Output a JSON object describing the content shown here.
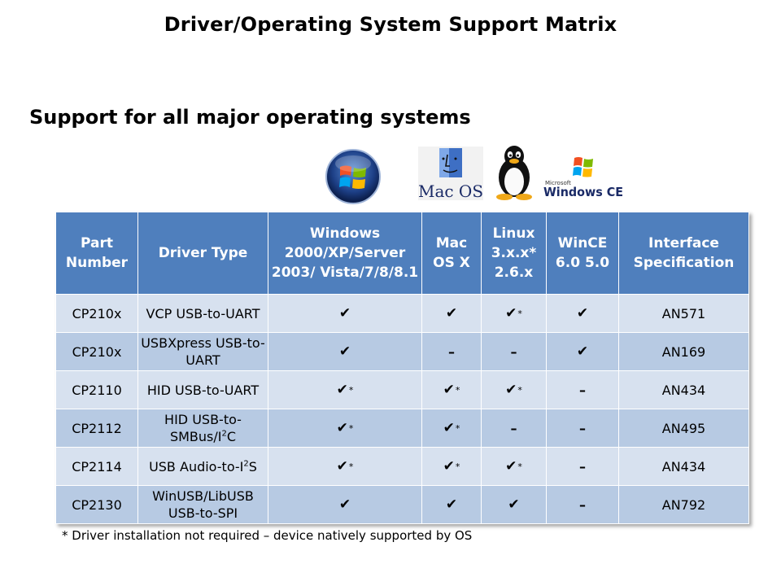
{
  "slide": {
    "title": "Driver/Operating System Support Matrix",
    "subtitle": "Support for all major operating systems",
    "footnote": "* Driver installation not required – device natively supported by OS"
  },
  "logos": {
    "windows": "windows-orb-icon",
    "mac": {
      "label": "Mac OS"
    },
    "linux": "tux-penguin-icon",
    "wince": {
      "small": "Microsoft",
      "label": "Windows CE"
    }
  },
  "matrix": {
    "headers": [
      "Part Number",
      "Driver Type",
      "Windows 2000/XP/Server 2003/ Vista/7/8/8.1",
      "Mac OS X",
      "Linux 3.x.x* 2.6.x",
      "WinCE 6.0 5.0",
      "Interface Specification"
    ],
    "rows": [
      {
        "part": "CP210x",
        "type": "VCP USB-to-UART",
        "win": "check",
        "mac": "check",
        "linux": "check*",
        "wince": "check",
        "spec": "AN571"
      },
      {
        "part": "CP210x",
        "type": "USBXpress USB-to-UART",
        "win": "check",
        "mac": "dash",
        "linux": "dash",
        "wince": "check",
        "spec": "AN169"
      },
      {
        "part": "CP2110",
        "type": "HID USB-to-UART",
        "win": "check*",
        "mac": "check*",
        "linux": "check*",
        "wince": "dash",
        "spec": "AN434"
      },
      {
        "part": "CP2112",
        "type_pre": "HID USB-to-SMBus/I",
        "type_sup": "2",
        "type_post": "C",
        "win": "check*",
        "mac": "check*",
        "linux": "dash",
        "wince": "dash",
        "spec": "AN495"
      },
      {
        "part": "CP2114",
        "type_pre": "USB Audio-to-I",
        "type_sup": "2",
        "type_post": "S",
        "win": "check*",
        "mac": "check*",
        "linux": "check*",
        "wince": "dash",
        "spec": "AN434"
      },
      {
        "part": "CP2130",
        "type": "WinUSB/LibUSB USB-to-SPI",
        "win": "check",
        "mac": "check",
        "linux": "check",
        "wince": "dash",
        "spec": "AN792"
      }
    ],
    "symbols": {
      "check": "✔",
      "star": "*",
      "dash": "–"
    },
    "colors": {
      "header": "#4f7fbd",
      "row_light": "#d7e1ef",
      "row_dark": "#b7cae3"
    }
  }
}
